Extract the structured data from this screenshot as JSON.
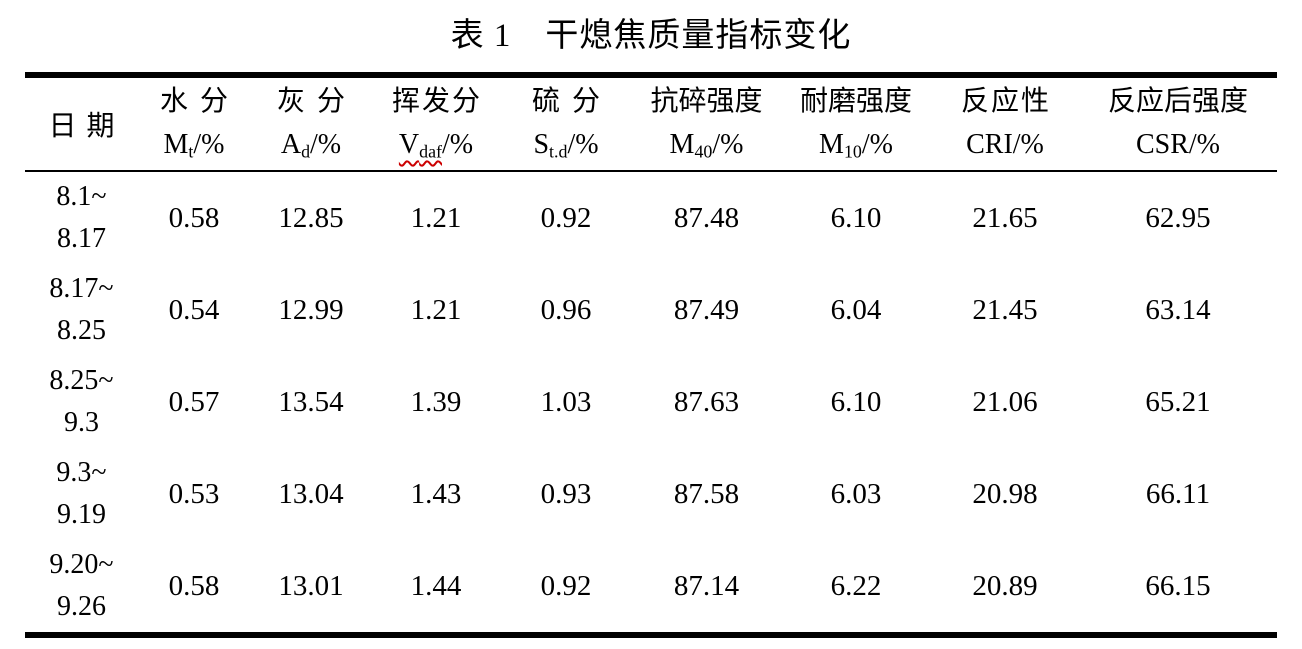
{
  "table": {
    "title": "表 1　干熄焦质量指标变化",
    "columns": [
      {
        "name": "日期",
        "sym_base": "",
        "sym_sub": "",
        "sym_rest": ""
      },
      {
        "name": "水分",
        "sym_base": "M",
        "sym_sub": "t",
        "sym_rest": "/%"
      },
      {
        "name": "灰分",
        "sym_base": "A",
        "sym_sub": "d",
        "sym_rest": "/%"
      },
      {
        "name": "挥发分",
        "sym_base": "V",
        "sym_sub": "daf",
        "sym_rest": "/%",
        "spellcheck_underline": true
      },
      {
        "name": "硫分",
        "sym_base": "S",
        "sym_sub": "t.d",
        "sym_rest": "/%"
      },
      {
        "name": "抗碎强度",
        "sym_base": "M",
        "sym_sub": "40",
        "sym_rest": "/%"
      },
      {
        "name": "耐磨强度",
        "sym_base": "M",
        "sym_sub": "10",
        "sym_rest": "/%"
      },
      {
        "name": "反应性",
        "sym_base": "CRI",
        "sym_sub": "",
        "sym_rest": "/%"
      },
      {
        "name": "反应后强度",
        "sym_base": "CSR",
        "sym_sub": "",
        "sym_rest": "/%"
      }
    ],
    "rows": [
      {
        "date": "8.1~8.17",
        "values": [
          "0.58",
          "12.85",
          "1.21",
          "0.92",
          "87.48",
          "6.10",
          "21.65",
          "62.95"
        ]
      },
      {
        "date": "8.17~8.25",
        "values": [
          "0.54",
          "12.99",
          "1.21",
          "0.96",
          "87.49",
          "6.04",
          "21.45",
          "63.14"
        ]
      },
      {
        "date": "8.25~9.3",
        "values": [
          "0.57",
          "13.54",
          "1.39",
          "1.03",
          "87.63",
          "6.10",
          "21.06",
          "65.21"
        ]
      },
      {
        "date": "9.3~9.19",
        "values": [
          "0.53",
          "13.04",
          "1.43",
          "0.93",
          "87.58",
          "6.03",
          "20.98",
          "66.11"
        ]
      },
      {
        "date": "9.20~9.26",
        "values": [
          "0.58",
          "13.01",
          "1.44",
          "0.92",
          "87.14",
          "6.22",
          "20.89",
          "66.15"
        ]
      }
    ],
    "colors": {
      "text": "#000000",
      "border": "#000000",
      "spellcheck_red": "#cc0000"
    }
  }
}
